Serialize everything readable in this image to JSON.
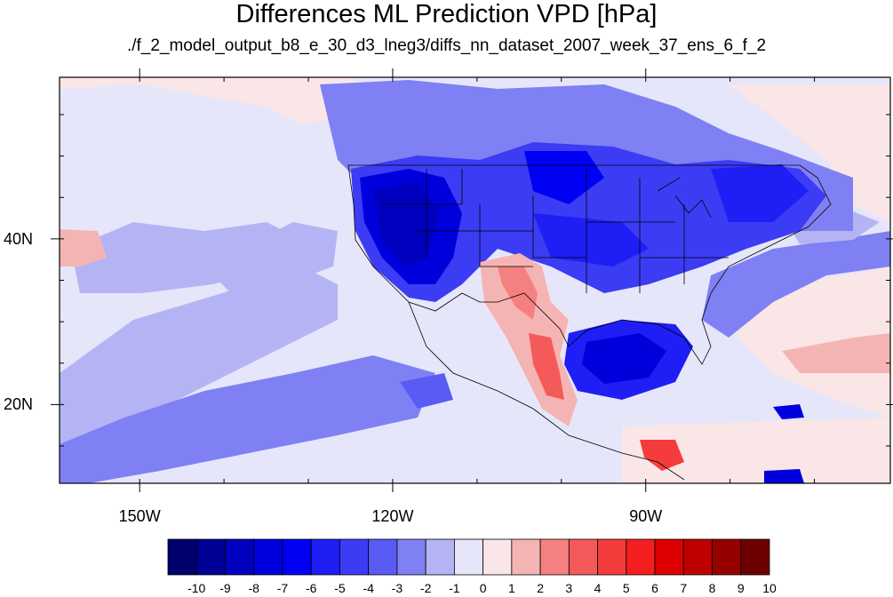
{
  "title": "Differences ML Prediction VPD [hPa]",
  "subtitle": "./f_2_model_output_b8_e_30_d3_lneg3/diffs_nn_dataset_2007_week_37_ens_6_f_2",
  "axes": {
    "lon_ticks": [
      {
        "value": -150,
        "label": "150W"
      },
      {
        "value": -120,
        "label": "120W"
      },
      {
        "value": -90,
        "label": "90W"
      }
    ],
    "lat_ticks": [
      {
        "value": 40,
        "label": "40N"
      },
      {
        "value": 20,
        "label": "20N"
      }
    ],
    "lon_range": [
      -159.5,
      -61
    ],
    "lat_range": [
      10.5,
      59.5
    ]
  },
  "colorbar": {
    "labels": [
      "-10",
      "-9",
      "-8",
      "-7",
      "-6",
      "-5",
      "-4",
      "-3",
      "-2",
      "-1",
      "0",
      "1",
      "2",
      "3",
      "4",
      "5",
      "6",
      "7",
      "8",
      "9",
      "10"
    ],
    "colors": [
      "#00006e",
      "#000096",
      "#0000be",
      "#0000dc",
      "#0000f5",
      "#1e1ef5",
      "#3c3cf5",
      "#5a5af5",
      "#8080f5",
      "#b4b4f5",
      "#e6e6fa",
      "#fae6e6",
      "#f5b4b4",
      "#f58080",
      "#f55a5a",
      "#f53c3c",
      "#f51e1e",
      "#dc0000",
      "#be0000",
      "#960000",
      "#6e0000"
    ]
  }
}
